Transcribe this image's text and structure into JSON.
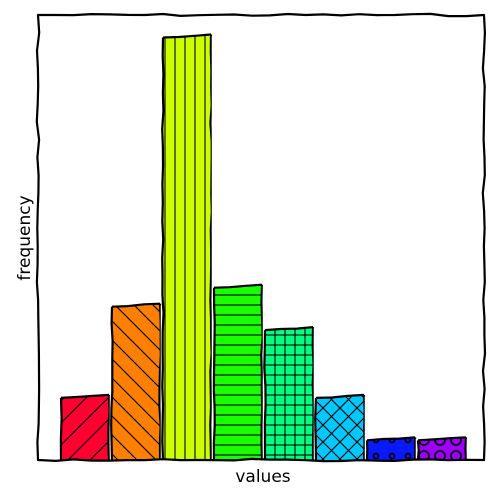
{
  "chart_data": {
    "type": "bar",
    "style": "xkcd hand-drawn histogram",
    "xlabel": "values",
    "ylabel": "frequency",
    "axis_ticks": "none",
    "ylim": [
      0,
      100
    ],
    "bars": [
      {
        "value": 15.0,
        "color": "#ff0030",
        "hatch": "diagonal-forward"
      },
      {
        "value": 36.5,
        "color": "#ff8000",
        "hatch": "diagonal-back"
      },
      {
        "value": 100.0,
        "color": "#ccff00",
        "hatch": "vertical"
      },
      {
        "value": 41.0,
        "color": "#1aff00",
        "hatch": "horizontal"
      },
      {
        "value": 31.0,
        "color": "#00ff80",
        "hatch": "grid"
      },
      {
        "value": 15.0,
        "color": "#00c8ff",
        "hatch": "crosshatch"
      },
      {
        "value": 5.0,
        "color": "#0a1aff",
        "hatch": "small-circles"
      },
      {
        "value": 5.0,
        "color": "#9900ff",
        "hatch": "circles"
      }
    ]
  }
}
